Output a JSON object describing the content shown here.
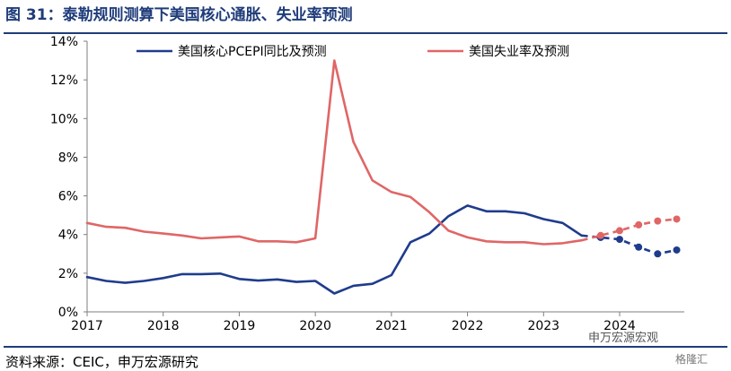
{
  "title": "图 31：泰勒规则测算下美国核心通胀、失业率预测",
  "source": "资料来源：CEIC，申万宏源研究",
  "watermark": "申万宏源宏观",
  "watermark2": "格隆汇",
  "colors": {
    "title": "#1f3c7a",
    "series1": "#1f3c8c",
    "series2": "#e06666"
  },
  "chart_data": {
    "type": "line",
    "ylim": [
      0,
      14
    ],
    "yticks": [
      "0%",
      "2%",
      "4%",
      "6%",
      "8%",
      "10%",
      "12%",
      "14%"
    ],
    "xlim": [
      2017.0,
      2024.85
    ],
    "xticks": [
      "2017",
      "2018",
      "2019",
      "2020",
      "2021",
      "2022",
      "2023",
      "2024"
    ],
    "legend_position": "top",
    "series": [
      {
        "name": "美国核心PCEPI同比及预测",
        "actual": [
          [
            2017.0,
            1.8
          ],
          [
            2017.25,
            1.6
          ],
          [
            2017.5,
            1.5
          ],
          [
            2017.75,
            1.6
          ],
          [
            2018.0,
            1.75
          ],
          [
            2018.25,
            1.95
          ],
          [
            2018.5,
            1.95
          ],
          [
            2018.75,
            1.98
          ],
          [
            2019.0,
            1.7
          ],
          [
            2019.25,
            1.62
          ],
          [
            2019.5,
            1.68
          ],
          [
            2019.75,
            1.55
          ],
          [
            2020.0,
            1.6
          ],
          [
            2020.25,
            0.95
          ],
          [
            2020.5,
            1.35
          ],
          [
            2020.75,
            1.45
          ],
          [
            2021.0,
            1.9
          ],
          [
            2021.25,
            3.6
          ],
          [
            2021.5,
            4.05
          ],
          [
            2021.75,
            4.95
          ],
          [
            2022.0,
            5.5
          ],
          [
            2022.25,
            5.2
          ],
          [
            2022.5,
            5.2
          ],
          [
            2022.75,
            5.1
          ],
          [
            2023.0,
            4.8
          ],
          [
            2023.25,
            4.6
          ],
          [
            2023.5,
            3.95
          ]
        ],
        "forecast": [
          [
            2023.5,
            3.95
          ],
          [
            2023.75,
            3.85
          ],
          [
            2024.0,
            3.75
          ],
          [
            2024.25,
            3.35
          ],
          [
            2024.5,
            3.0
          ],
          [
            2024.75,
            3.2
          ]
        ]
      },
      {
        "name": "美国失业率及预测",
        "actual": [
          [
            2017.0,
            4.6
          ],
          [
            2017.25,
            4.4
          ],
          [
            2017.5,
            4.35
          ],
          [
            2017.75,
            4.15
          ],
          [
            2018.0,
            4.05
          ],
          [
            2018.25,
            3.95
          ],
          [
            2018.5,
            3.8
          ],
          [
            2018.75,
            3.85
          ],
          [
            2019.0,
            3.9
          ],
          [
            2019.25,
            3.65
          ],
          [
            2019.5,
            3.65
          ],
          [
            2019.75,
            3.6
          ],
          [
            2020.0,
            3.8
          ],
          [
            2020.25,
            13.0
          ],
          [
            2020.5,
            8.8
          ],
          [
            2020.75,
            6.8
          ],
          [
            2021.0,
            6.2
          ],
          [
            2021.25,
            5.95
          ],
          [
            2021.5,
            5.15
          ],
          [
            2021.75,
            4.2
          ],
          [
            2022.0,
            3.85
          ],
          [
            2022.25,
            3.65
          ],
          [
            2022.5,
            3.6
          ],
          [
            2022.75,
            3.6
          ],
          [
            2023.0,
            3.5
          ],
          [
            2023.25,
            3.55
          ],
          [
            2023.5,
            3.7
          ]
        ],
        "forecast": [
          [
            2023.5,
            3.7
          ],
          [
            2023.75,
            3.95
          ],
          [
            2024.0,
            4.2
          ],
          [
            2024.25,
            4.5
          ],
          [
            2024.5,
            4.7
          ],
          [
            2024.75,
            4.8
          ]
        ]
      }
    ]
  }
}
